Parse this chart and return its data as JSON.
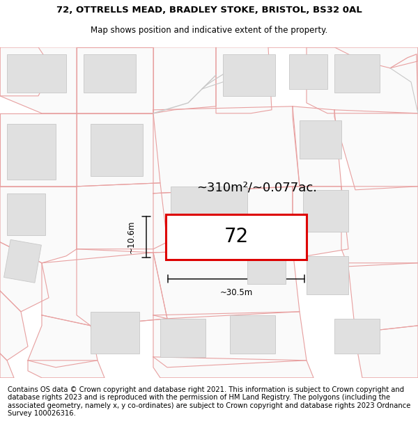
{
  "title_line1": "72, OTTRELLS MEAD, BRADLEY STOKE, BRISTOL, BS32 0AL",
  "title_line2": "Map shows position and indicative extent of the property.",
  "footer_text": "Contains OS data © Crown copyright and database right 2021. This information is subject to Crown copyright and database rights 2023 and is reproduced with the permission of HM Land Registry. The polygons (including the associated geometry, namely x, y co-ordinates) are subject to Crown copyright and database rights 2023 Ordnance Survey 100026316.",
  "property_label": "72",
  "area_text": "~310m²/~0.077ac.",
  "width_label": "~30.5m",
  "height_label": "~10.6m",
  "background_color": "#ffffff",
  "map_bg_color": "#ffffff",
  "plot_fill_color": "#ffffff",
  "plot_border_color": "#dd0000",
  "building_fill_color": "#e0e0e0",
  "building_edge_color": "#c8c8c8",
  "parcel_line_color": "#e8a0a0",
  "road_line_color": "#cccccc",
  "dim_line_color": "#111111",
  "title_fontsize": 9.5,
  "subtitle_fontsize": 8.5,
  "footer_fontsize": 7.2,
  "label_fontsize": 20,
  "area_fontsize": 13,
  "dim_fontsize": 8.5
}
